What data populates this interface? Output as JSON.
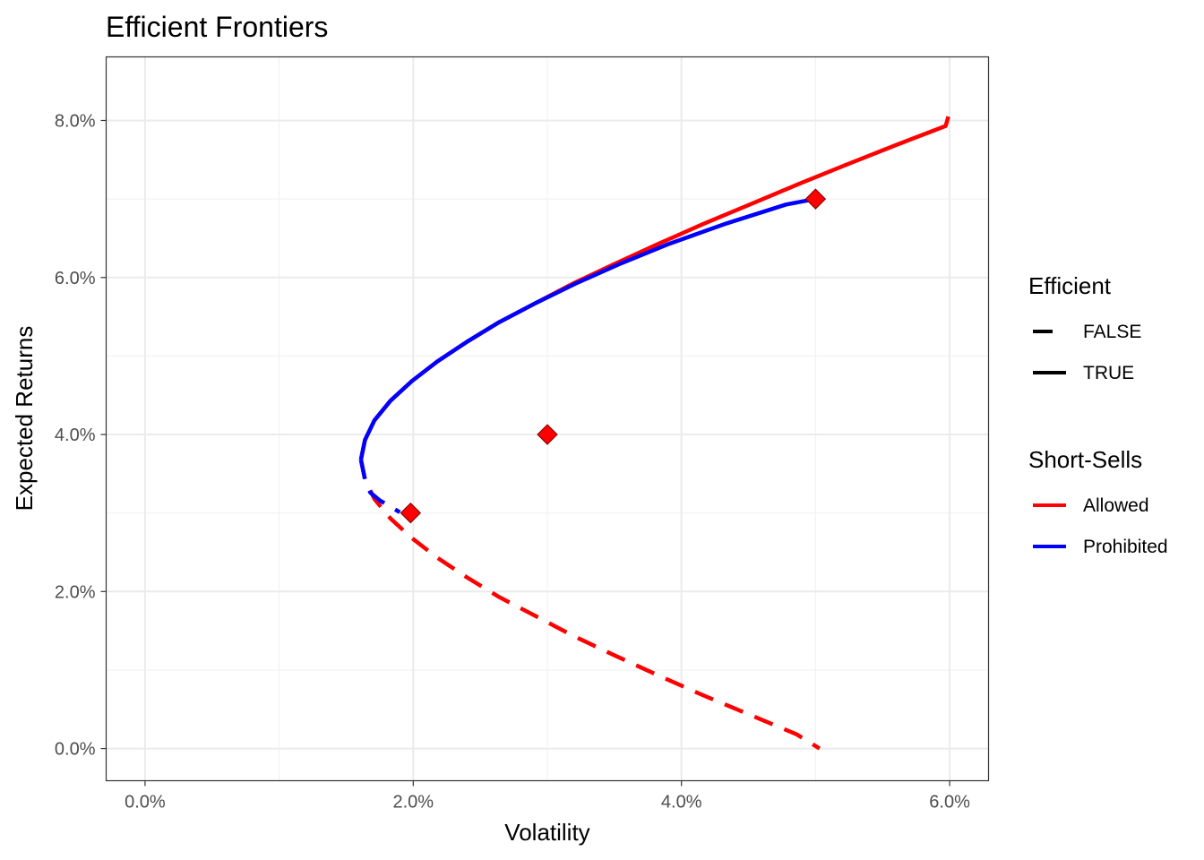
{
  "chart_data": {
    "type": "line",
    "title": "Efficient Frontiers",
    "xlabel": "Volatility",
    "ylabel": "Expected Returns",
    "xlim": [
      -0.0029,
      0.0629
    ],
    "ylim": [
      -0.0041,
      0.0881
    ],
    "x_ticks": [
      0.0,
      0.02,
      0.04,
      0.06
    ],
    "x_tick_labels": [
      "0.0%",
      "2.0%",
      "4.0%",
      "6.0%"
    ],
    "y_ticks": [
      0.0,
      0.02,
      0.04,
      0.06,
      0.08
    ],
    "y_tick_labels": [
      "0.0%",
      "2.0%",
      "4.0%",
      "6.0%",
      "8.0%"
    ],
    "grid": true,
    "legend_position": "right",
    "colors": {
      "Allowed": "#ff0000",
      "Prohibited": "#0000ff",
      "point": "#ff0000"
    },
    "series": [
      {
        "name": "Allowed",
        "efficient": true,
        "points": [
          [
            0.0161,
            0.0368
          ],
          [
            0.0164,
            0.0393
          ],
          [
            0.0171,
            0.0418
          ],
          [
            0.0183,
            0.0443
          ],
          [
            0.0199,
            0.0468
          ],
          [
            0.0218,
            0.0493
          ],
          [
            0.024,
            0.0518
          ],
          [
            0.0264,
            0.0543
          ],
          [
            0.0292,
            0.0568
          ],
          [
            0.032,
            0.0593
          ],
          [
            0.0351,
            0.0618
          ],
          [
            0.0383,
            0.0643
          ],
          [
            0.0416,
            0.0668
          ],
          [
            0.0451,
            0.0693
          ],
          [
            0.0486,
            0.0718
          ],
          [
            0.0522,
            0.0743
          ],
          [
            0.0559,
            0.0768
          ],
          [
            0.0597,
            0.0793
          ],
          [
            0.0599,
            0.0805
          ]
        ]
      },
      {
        "name": "Allowed",
        "efficient": false,
        "points": [
          [
            0.0161,
            0.0368
          ],
          [
            0.0164,
            0.0343
          ],
          [
            0.0171,
            0.0318
          ],
          [
            0.0183,
            0.0293
          ],
          [
            0.0199,
            0.0268
          ],
          [
            0.0218,
            0.0243
          ],
          [
            0.024,
            0.0218
          ],
          [
            0.0264,
            0.0193
          ],
          [
            0.0292,
            0.0168
          ],
          [
            0.032,
            0.0143
          ],
          [
            0.0351,
            0.0118
          ],
          [
            0.0383,
            0.0093
          ],
          [
            0.0416,
            0.0068
          ],
          [
            0.0451,
            0.0043
          ],
          [
            0.0486,
            0.0018
          ],
          [
            0.0503,
            0.0
          ]
        ]
      },
      {
        "name": "Prohibited",
        "efficient": true,
        "points": [
          [
            0.0161,
            0.0368
          ],
          [
            0.0164,
            0.0393
          ],
          [
            0.0171,
            0.0418
          ],
          [
            0.0183,
            0.0443
          ],
          [
            0.0199,
            0.0468
          ],
          [
            0.0218,
            0.0493
          ],
          [
            0.024,
            0.0518
          ],
          [
            0.0264,
            0.0543
          ],
          [
            0.0292,
            0.0568
          ],
          [
            0.0322,
            0.0593
          ],
          [
            0.0355,
            0.0618
          ],
          [
            0.0391,
            0.0643
          ],
          [
            0.0432,
            0.0668
          ],
          [
            0.0478,
            0.0693
          ],
          [
            0.05,
            0.07
          ]
        ]
      },
      {
        "name": "Prohibited",
        "efficient": false,
        "points": [
          [
            0.0161,
            0.0368
          ],
          [
            0.0164,
            0.0343
          ],
          [
            0.0168,
            0.0326
          ],
          [
            0.0175,
            0.0316
          ],
          [
            0.0185,
            0.0306
          ],
          [
            0.019,
            0.0301
          ]
        ]
      }
    ],
    "points": [
      {
        "x": 0.0198,
        "y": 0.03
      },
      {
        "x": 0.03,
        "y": 0.04
      },
      {
        "x": 0.05,
        "y": 0.07
      }
    ],
    "legend": {
      "linetype": {
        "title": "Efficient",
        "entries": [
          "FALSE",
          "TRUE"
        ]
      },
      "color": {
        "title": "Short-Sells",
        "entries": [
          "Allowed",
          "Prohibited"
        ]
      }
    }
  }
}
